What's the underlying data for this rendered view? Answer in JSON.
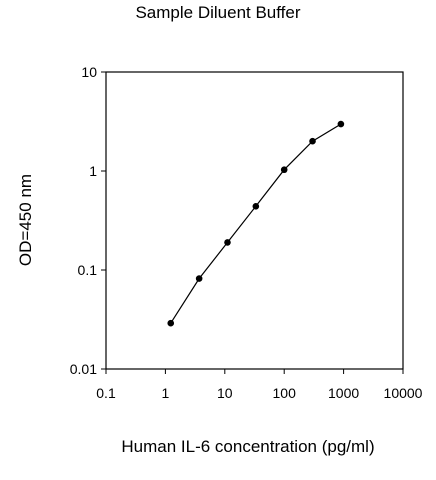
{
  "chart_data": {
    "type": "line",
    "title": "Sample Diluent Buffer",
    "xlabel": "Human IL-6 concentration (pg/ml)",
    "ylabel": "OD=450 nm",
    "x_scale": "log",
    "y_scale": "log",
    "xlim": [
      0.1,
      10000
    ],
    "ylim": [
      0.01,
      10
    ],
    "x_ticks": [
      "0.1",
      "1",
      "10",
      "100",
      "1000",
      "10000"
    ],
    "y_ticks": [
      "0.01",
      "0.1",
      "1",
      "10"
    ],
    "grid": false,
    "series": [
      {
        "x": [
          1.23,
          3.7,
          11.1,
          33.3,
          100,
          300,
          900
        ],
        "y": [
          0.029,
          0.082,
          0.19,
          0.44,
          1.03,
          2.0,
          2.98
        ]
      }
    ]
  }
}
